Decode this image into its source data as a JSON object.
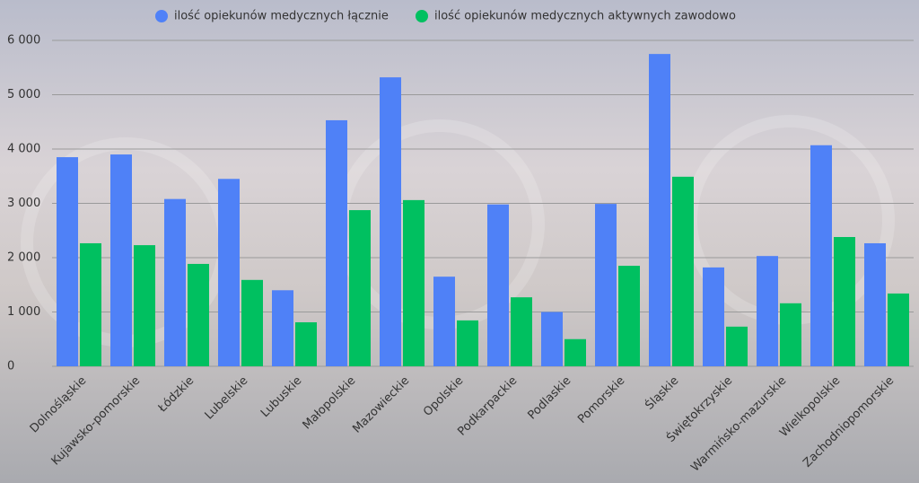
{
  "chart_data": {
    "type": "bar",
    "categories": [
      "Dolnośląskie",
      "Kujawsko-pomorskie",
      "Łódzkie",
      "Lubelskie",
      "Lubuskie",
      "Małopolskie",
      "Mazowieckie",
      "Opolskie",
      "Podkarpackie",
      "Podlaskie",
      "Pomorskie",
      "Śląskie",
      "Świętokrzyskie",
      "Warmińsko-mazurskie",
      "Wielkopolskie",
      "Zachodniopomorskie"
    ],
    "series": [
      {
        "name": "ilość opiekunów medycznych łącznie",
        "color": "#4f81f7",
        "values": [
          3850,
          3900,
          3080,
          3450,
          1400,
          4530,
          5320,
          1650,
          2980,
          1000,
          2990,
          5750,
          1820,
          2030,
          4070,
          2265
        ]
      },
      {
        "name": "ilość opiekunów medycznych aktywnych zawodowo",
        "color": "#00c060",
        "values": [
          2265,
          2230,
          1885,
          1590,
          810,
          2875,
          3060,
          845,
          1270,
          500,
          1850,
          3490,
          730,
          1160,
          2380,
          1340
        ]
      }
    ],
    "ylim": [
      0,
      6000
    ],
    "yticks": [
      0,
      {
        "value": 1000,
        "label": "1 000"
      },
      {
        "value": 2000,
        "label": "2 000"
      },
      {
        "value": 3000,
        "label": "3 000"
      },
      {
        "value": 4000,
        "label": "4 000"
      },
      {
        "value": 5000,
        "label": "5 000"
      },
      {
        "value": 6000,
        "label": "6 000"
      }
    ],
    "grid": true,
    "legend": "top"
  }
}
